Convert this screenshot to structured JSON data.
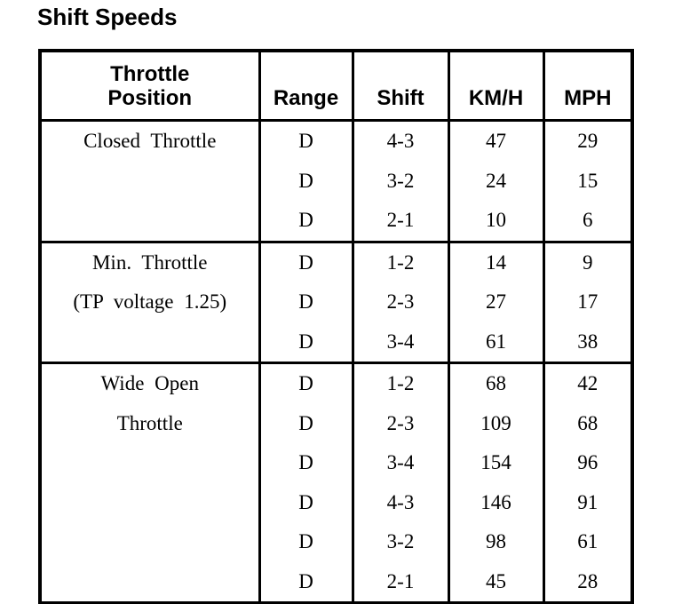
{
  "title": "Shift Speeds",
  "table": {
    "columns": {
      "throttle_position_line1": "Throttle",
      "throttle_position_line2": "Position",
      "range": "Range",
      "shift": "Shift",
      "kmh": "KM/H",
      "mph": "MPH"
    },
    "sections": [
      {
        "label_lines": [
          "Closed Throttle"
        ],
        "rows": [
          {
            "range": "D",
            "shift": "4-3",
            "kmh": "47",
            "mph": "29"
          },
          {
            "range": "D",
            "shift": "3-2",
            "kmh": "24",
            "mph": "15"
          },
          {
            "range": "D",
            "shift": "2-1",
            "kmh": "10",
            "mph": "6"
          }
        ]
      },
      {
        "label_lines": [
          "Min. Throttle",
          "(TP voltage 1.25)"
        ],
        "rows": [
          {
            "range": "D",
            "shift": "1-2",
            "kmh": "14",
            "mph": "9"
          },
          {
            "range": "D",
            "shift": "2-3",
            "kmh": "27",
            "mph": "17"
          },
          {
            "range": "D",
            "shift": "3-4",
            "kmh": "61",
            "mph": "38"
          }
        ]
      },
      {
        "label_lines": [
          "Wide Open",
          "Throttle"
        ],
        "rows": [
          {
            "range": "D",
            "shift": "1-2",
            "kmh": "68",
            "mph": "42"
          },
          {
            "range": "D",
            "shift": "2-3",
            "kmh": "109",
            "mph": "68"
          },
          {
            "range": "D",
            "shift": "3-4",
            "kmh": "154",
            "mph": "96"
          },
          {
            "range": "D",
            "shift": "4-3",
            "kmh": "146",
            "mph": "91"
          },
          {
            "range": "D",
            "shift": "3-2",
            "kmh": "98",
            "mph": "61"
          },
          {
            "range": "D",
            "shift": "2-1",
            "kmh": "45",
            "mph": "28"
          }
        ]
      }
    ]
  }
}
